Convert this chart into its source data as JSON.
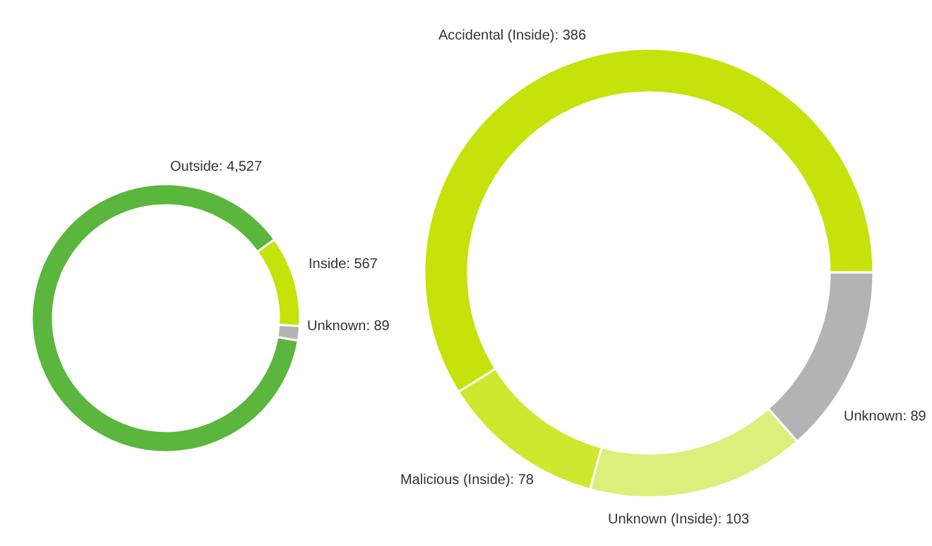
{
  "chart_data": [
    {
      "type": "donut",
      "categories": [
        "Outside",
        "Inside",
        "Unknown"
      ],
      "values": [
        4527,
        567,
        89
      ],
      "value_labels": [
        "4,527",
        "567",
        "89"
      ],
      "colors": [
        "#5ab63c",
        "#c5e20b",
        "#b3b3b3"
      ]
    },
    {
      "type": "donut",
      "categories": [
        "Accidental (Inside)",
        "Unknown",
        "Unknown (Inside)",
        "Malicious (Inside)"
      ],
      "values": [
        386,
        89,
        103,
        78
      ],
      "value_labels": [
        "386",
        "89",
        "103",
        "78"
      ],
      "colors": [
        "#c5e20b",
        "#b3b3b3",
        "#dcef7c",
        "#cde82e"
      ]
    }
  ]
}
